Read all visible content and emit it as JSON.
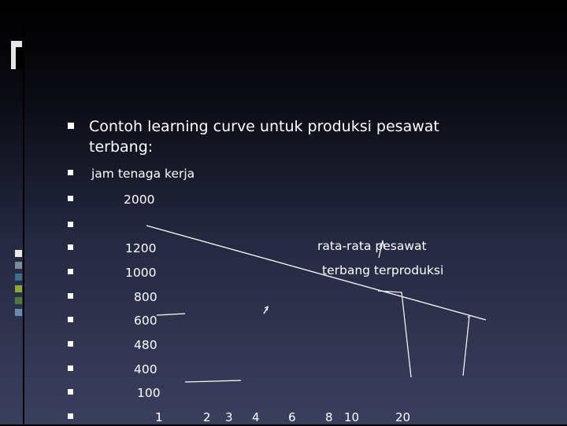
{
  "slide": {
    "title_line1": "Contoh learning curve untuk produksi pesawat",
    "title_line2": "terbang:",
    "rows": [
      {
        "text": "jam tenaga kerja"
      },
      {
        "text": "2000"
      },
      {
        "text": ""
      },
      {
        "text": "1200"
      },
      {
        "text": "1000"
      },
      {
        "text": "800"
      },
      {
        "text": "600"
      },
      {
        "text": "480"
      },
      {
        "text": "400"
      },
      {
        "text": "100"
      },
      {
        "text": "1"
      }
    ],
    "annotation_line1": "rata-rata pesawat",
    "annotation_line2": "terbang terproduksi",
    "x_labels": [
      "2",
      "3",
      "4",
      "6",
      "8",
      "10",
      "20"
    ],
    "swatch_colors": [
      "#e8e8e8",
      "#7a8c9c",
      "#3d6e8c",
      "#8fa838",
      "#4d7a3a",
      "#6a8cb0"
    ]
  }
}
